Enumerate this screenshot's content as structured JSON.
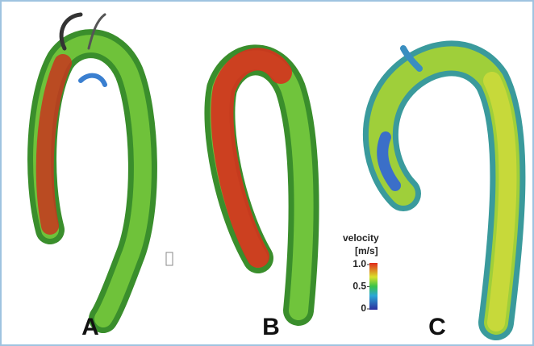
{
  "panels": [
    {
      "label": "A"
    },
    {
      "label": "B"
    },
    {
      "label": "C"
    }
  ],
  "colorbar": {
    "title": "velocity",
    "unit": "[m/s]",
    "ticks": [
      {
        "value": 1,
        "label": "1.0"
      },
      0.5,
      0
    ]
  }
}
